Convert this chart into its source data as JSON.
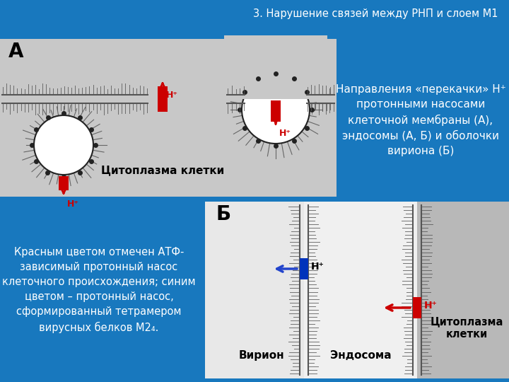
{
  "bg_color": "#1878be",
  "title": "3. Нарушение связей между РНП и слоем М1",
  "title_color": "white",
  "title_fontsize": 10.5,
  "panel_A_bg": "#c8c8c8",
  "panel_B_bg_left": "#e8e8e8",
  "panel_B_bg_mid": "#e0e0e0",
  "panel_B_bg_right": "#b8b8b8",
  "panel_A_label": "А",
  "panel_B_label": "Б",
  "label_fontsize": 20,
  "cytoplasm_text_A": "Цитоплазма клетки",
  "cytoplasm_text_B": "Цитоплазма\nклетки",
  "virion_text": "Вирион",
  "endosome_text": "Эндосома",
  "right_text": "Направления «перекачки» Н⁺\nпротонными насосами\nклеточной мембраны (А),\nэндосомы (А, Б) и оболочки\nвириона (Б)",
  "left_text": "Красным цветом отмечен АТФ-\nзависимый протонный насос\nклеточного происхождения; синим\nцветом – протонный насос,\nсформированный тетрамером\nвирусных белков М2₄.",
  "red_color": "#cc0000",
  "blue_pump_color": "#0033bb",
  "dark_color": "#222222",
  "membrane_color": "#555555",
  "hair_color": "#888888"
}
